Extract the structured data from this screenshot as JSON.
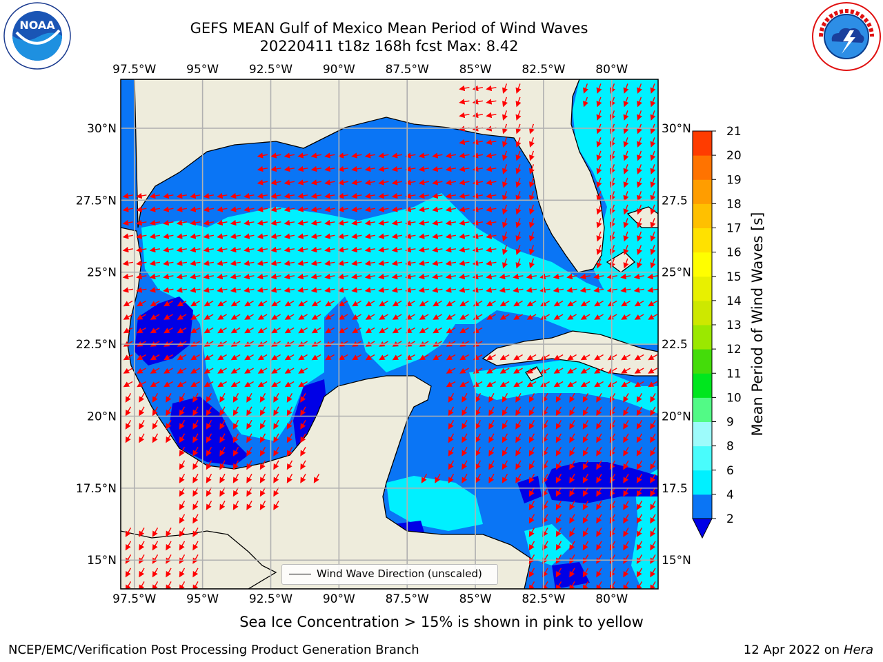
{
  "header": {
    "title_line1": "GEFS MEAN Gulf of Mexico Mean Period of Wind Waves",
    "title_line2": "20220411 t18z 168h fcst   Max: 8.42"
  },
  "logos": {
    "left": "NOAA",
    "left_ring_text": "NATIONAL OCEANIC AND ATMOSPHERIC ADMINISTRATION · U.S. DEPARTMENT OF COMMERCE",
    "right_ring_text": "NATIONAL WEATHER SERVICE"
  },
  "map": {
    "extent_lon": [
      -98,
      -78.3
    ],
    "extent_lat": [
      14,
      31.7
    ],
    "lon_ticks": [
      "97.5°W",
      "95°W",
      "92.5°W",
      "90°W",
      "87.5°W",
      "85°W",
      "82.5°W",
      "80°W"
    ],
    "lon_values": [
      -97.5,
      -95,
      -92.5,
      -90,
      -87.5,
      -85,
      -82.5,
      -80
    ],
    "lat_ticks": [
      "30°N",
      "27.5°N",
      "25°N",
      "22.5°N",
      "20°N",
      "17.5°N",
      "15°N"
    ],
    "lat_values": [
      30,
      27.5,
      25,
      22.5,
      20,
      17.5,
      15
    ],
    "right_lat_ticks": [
      "30°N",
      "27.5",
      "25°N",
      "22.5",
      "20°N",
      "17.5",
      "15°N"
    ],
    "grid": true,
    "land_color": "#eeecdc",
    "arrow_color": "#ff0000",
    "legend_label": "Wind Wave Direction (unscaled)"
  },
  "colorbar": {
    "label": "Mean Period of Wind Waves [s]",
    "ticks": [
      "2",
      "4",
      "6",
      "8",
      "9",
      "10",
      "11",
      "12",
      "13",
      "14",
      "15",
      "16",
      "17",
      "18",
      "19",
      "20",
      "21"
    ],
    "colors": [
      "#0a75f5",
      "#00f0ff",
      "#49fcfc",
      "#9dfbfb",
      "#52fa86",
      "#00e61e",
      "#44dc0a",
      "#9be800",
      "#cde800",
      "#e8f000",
      "#fffe00",
      "#ffe100",
      "#ffc000",
      "#ff9d00",
      "#ff7300",
      "#ff3c00",
      "#ff0000"
    ],
    "under_color": "#0000e6"
  },
  "footer": {
    "ice_note": "Sea Ice Concentration > 15% is shown in pink to yellow",
    "left": "NCEP/EMC/Verification Post Processing Product Generation Branch",
    "right_date": "12 Apr 2022 on ",
    "right_machine": "Hera"
  }
}
